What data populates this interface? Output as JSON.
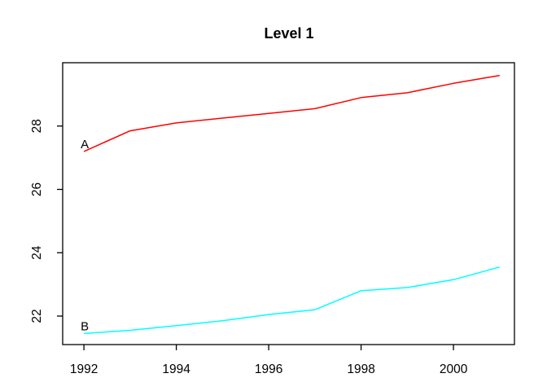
{
  "chart_data": {
    "type": "line",
    "title": "Level 1",
    "xlabel": "",
    "ylabel": "",
    "x": [
      1992,
      1993,
      1994,
      1995,
      1996,
      1997,
      1998,
      1999,
      2000,
      2001
    ],
    "series": [
      {
        "name": "A",
        "label": "A",
        "color": "#FF0000",
        "values": [
          27.2,
          27.85,
          28.1,
          28.25,
          28.4,
          28.55,
          28.9,
          29.05,
          29.35,
          29.6
        ]
      },
      {
        "name": "B",
        "label": "B",
        "color": "#00FFFF",
        "values": [
          21.45,
          21.55,
          21.7,
          21.85,
          22.05,
          22.2,
          22.8,
          22.9,
          23.15,
          23.55
        ]
      }
    ],
    "xticks": {
      "values": [
        1992,
        1994,
        1996,
        1998,
        2000
      ],
      "labels": [
        "1992",
        "1994",
        "1996",
        "1998",
        "2000"
      ]
    },
    "yticks": {
      "values": [
        22,
        24,
        26,
        28
      ],
      "labels": [
        "22",
        "24",
        "26",
        "28"
      ]
    },
    "xlim": [
      1991.54,
      2001.32
    ],
    "ylim": [
      21.1,
      30.0
    ],
    "grid": false,
    "legend": "none",
    "background": "#FFFFFF",
    "axis_color": "#000000",
    "text_color": "#000000"
  }
}
